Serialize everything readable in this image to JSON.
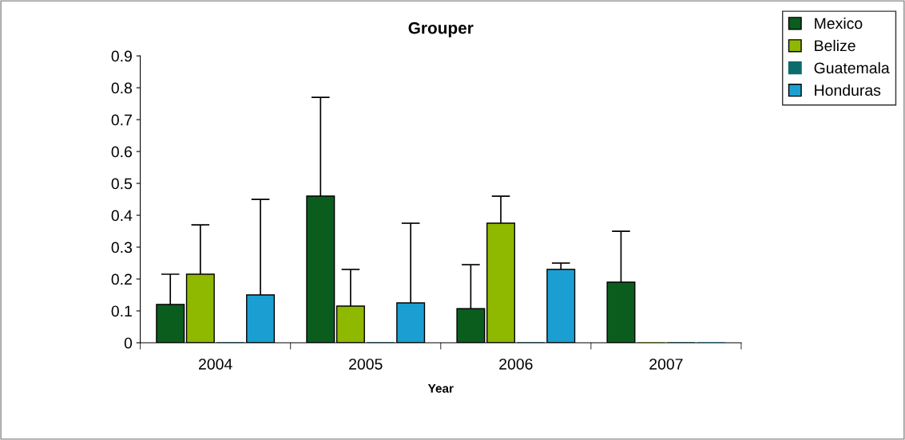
{
  "chart_data": {
    "type": "bar",
    "title": "Grouper",
    "xlabel": "Year",
    "categories": [
      "2004",
      "2005",
      "2006",
      "2007"
    ],
    "series": [
      {
        "name": "Mexico",
        "color": "#0b5d1e",
        "values": [
          0.12,
          0.46,
          0.107,
          0.19
        ],
        "errors": [
          [
            0.12,
            0.215
          ],
          [
            0.46,
            0.77
          ],
          [
            0.107,
            0.245
          ],
          [
            0.19,
            0.35
          ]
        ]
      },
      {
        "name": "Belize",
        "color": "#8fb800",
        "values": [
          0.215,
          0.115,
          0.375,
          0
        ],
        "errors": [
          [
            0.215,
            0.37
          ],
          [
            0.115,
            0.23
          ],
          [
            0.375,
            0.46
          ],
          null
        ]
      },
      {
        "name": "Guatemala",
        "color": "#0e6b6b",
        "values": [
          0,
          0,
          0,
          0
        ]
      },
      {
        "name": "Honduras",
        "color": "#1b9fd2",
        "values": [
          0.15,
          0.125,
          0.23,
          0
        ],
        "errors": [
          [
            0.15,
            0.45
          ],
          [
            0.125,
            0.375
          ],
          [
            0.23,
            0.25
          ],
          null
        ]
      }
    ],
    "ylim": [
      0,
      0.9
    ],
    "yticks": [
      0,
      0.1,
      0.2,
      0.3,
      0.4,
      0.5,
      0.6,
      0.7,
      0.8,
      0.9
    ],
    "grid": false,
    "legend": "top right"
  }
}
